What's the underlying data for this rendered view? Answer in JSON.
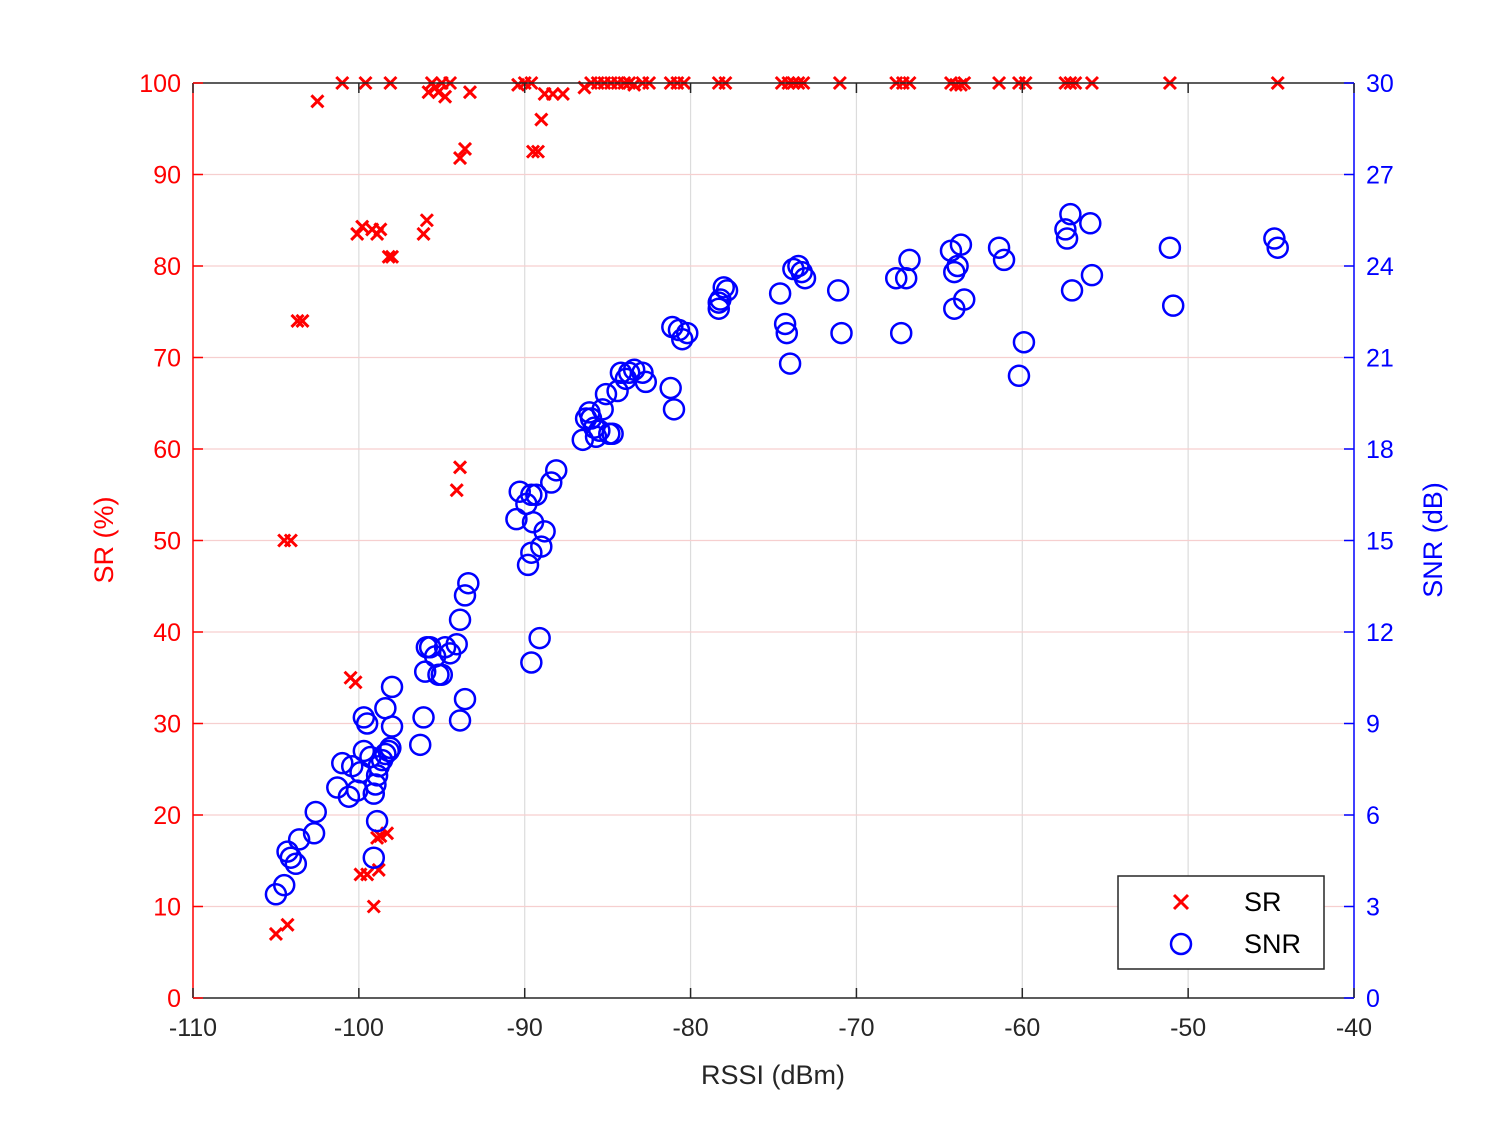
{
  "chart_data": {
    "type": "scatter",
    "xlabel": "RSSI (dBm)",
    "ylabel_left": "SR (%)",
    "ylabel_right": "SNR (dB)",
    "xlim": [
      -110,
      -40
    ],
    "ylim_left": [
      0,
      100
    ],
    "ylim_right": [
      0,
      30
    ],
    "xticks": [
      -110,
      -100,
      -90,
      -80,
      -70,
      -60,
      -50,
      -40
    ],
    "yticks_left": [
      0,
      10,
      20,
      30,
      40,
      50,
      60,
      70,
      80,
      90,
      100
    ],
    "yticks_right": [
      0,
      3,
      6,
      9,
      12,
      15,
      18,
      21,
      24,
      27,
      30
    ],
    "grid": true,
    "legend_position": "bottom-right",
    "colors": {
      "SR": "#ff0000",
      "SNR": "#0000ff",
      "axis": "#262626",
      "grid": "#dcdcdc",
      "grid_right": "#f6cfcf"
    },
    "series": [
      {
        "name": "SR",
        "axis": "left",
        "marker": "x",
        "points": [
          [
            -105,
            7
          ],
          [
            -104.3,
            8
          ],
          [
            -104.5,
            50
          ],
          [
            -104.1,
            50
          ],
          [
            -103.7,
            74
          ],
          [
            -103.4,
            74
          ],
          [
            -102.5,
            98
          ],
          [
            -101,
            100
          ],
          [
            -100.5,
            35
          ],
          [
            -100.2,
            34.5
          ],
          [
            -100.1,
            83.5
          ],
          [
            -99.8,
            84.3
          ],
          [
            -99.6,
            100
          ],
          [
            -99.9,
            13.5
          ],
          [
            -99.5,
            13.5
          ],
          [
            -99.2,
            84
          ],
          [
            -98.9,
            83.5
          ],
          [
            -98.7,
            84
          ],
          [
            -99.1,
            10
          ],
          [
            -98.9,
            17.5
          ],
          [
            -98.7,
            17.7
          ],
          [
            -98.8,
            14
          ],
          [
            -98.3,
            18
          ],
          [
            -98.2,
            81
          ],
          [
            -98.0,
            81
          ],
          [
            -98.1,
            100
          ],
          [
            -96.1,
            83.5
          ],
          [
            -95.9,
            85
          ],
          [
            -95.8,
            99
          ],
          [
            -95.6,
            100
          ],
          [
            -95.4,
            99.5
          ],
          [
            -95.2,
            99
          ],
          [
            -95.0,
            100
          ],
          [
            -94.8,
            98.5
          ],
          [
            -94.5,
            100
          ],
          [
            -94.1,
            55.5
          ],
          [
            -93.9,
            58
          ],
          [
            -93.9,
            91.8
          ],
          [
            -93.6,
            92.8
          ],
          [
            -93.3,
            99
          ],
          [
            -90.4,
            99.8
          ],
          [
            -90,
            100
          ],
          [
            -89.6,
            100
          ],
          [
            -89.5,
            92.5
          ],
          [
            -89.2,
            92.5
          ],
          [
            -89.0,
            96
          ],
          [
            -88.8,
            98.8
          ],
          [
            -88.3,
            98.8
          ],
          [
            -87.7,
            98.8
          ],
          [
            -86.4,
            99.5
          ],
          [
            -86.0,
            100
          ],
          [
            -85.6,
            100
          ],
          [
            -85.2,
            100
          ],
          [
            -84.8,
            100
          ],
          [
            -84.4,
            100
          ],
          [
            -84.0,
            100
          ],
          [
            -83.7,
            100
          ],
          [
            -83.4,
            99.8
          ],
          [
            -82.9,
            100
          ],
          [
            -82.5,
            100
          ],
          [
            -81.2,
            100
          ],
          [
            -80.8,
            100
          ],
          [
            -80.4,
            100
          ],
          [
            -78.3,
            100
          ],
          [
            -77.9,
            100
          ],
          [
            -74.5,
            100
          ],
          [
            -74.1,
            100
          ],
          [
            -73.8,
            100
          ],
          [
            -73.5,
            100
          ],
          [
            -73.2,
            100
          ],
          [
            -71.0,
            100
          ],
          [
            -67.6,
            100
          ],
          [
            -67.2,
            100
          ],
          [
            -66.8,
            100
          ],
          [
            -64.3,
            100
          ],
          [
            -64.0,
            99.8
          ],
          [
            -63.7,
            99.8
          ],
          [
            -63.5,
            100
          ],
          [
            -61.4,
            100
          ],
          [
            -60.2,
            100
          ],
          [
            -59.8,
            100
          ],
          [
            -57.4,
            100
          ],
          [
            -57.1,
            100
          ],
          [
            -56.8,
            100
          ],
          [
            -55.8,
            100
          ],
          [
            -51.1,
            100
          ],
          [
            -44.6,
            100
          ]
        ]
      },
      {
        "name": "SNR",
        "axis": "right",
        "marker": "o",
        "points": [
          [
            -105,
            3.4
          ],
          [
            -104.5,
            3.7
          ],
          [
            -104.3,
            4.8
          ],
          [
            -104.1,
            4.6
          ],
          [
            -103.8,
            4.4
          ],
          [
            -103.6,
            5.2
          ],
          [
            -102.7,
            5.4
          ],
          [
            -102.6,
            6.1
          ],
          [
            -101.3,
            6.9
          ],
          [
            -101.0,
            7.7
          ],
          [
            -100.6,
            6.6
          ],
          [
            -100.4,
            7.6
          ],
          [
            -100.1,
            6.8
          ],
          [
            -99.9,
            7.4
          ],
          [
            -99.7,
            8.1
          ],
          [
            -99.7,
            9.2
          ],
          [
            -99.5,
            9.0
          ],
          [
            -99.3,
            7.9
          ],
          [
            -99.1,
            6.7
          ],
          [
            -99.0,
            7.0
          ],
          [
            -98.9,
            7.3
          ],
          [
            -98.8,
            7.6
          ],
          [
            -98.6,
            7.8
          ],
          [
            -98.4,
            8.0
          ],
          [
            -99.1,
            4.6
          ],
          [
            -98.9,
            5.8
          ],
          [
            -98.4,
            9.5
          ],
          [
            -98.2,
            8.1
          ],
          [
            -98.1,
            8.2
          ],
          [
            -98.0,
            8.9
          ],
          [
            -98.0,
            10.2
          ],
          [
            -96.3,
            8.3
          ],
          [
            -96.1,
            9.2
          ],
          [
            -96.0,
            10.7
          ],
          [
            -95.9,
            11.5
          ],
          [
            -95.7,
            11.5
          ],
          [
            -95.4,
            11.2
          ],
          [
            -95.2,
            10.6
          ],
          [
            -95.0,
            10.6
          ],
          [
            -94.8,
            11.5
          ],
          [
            -94.5,
            11.3
          ],
          [
            -94.1,
            11.6
          ],
          [
            -93.9,
            9.1
          ],
          [
            -93.9,
            12.4
          ],
          [
            -93.6,
            9.8
          ],
          [
            -93.6,
            13.2
          ],
          [
            -93.4,
            13.6
          ],
          [
            -90.5,
            15.7
          ],
          [
            -90.3,
            16.6
          ],
          [
            -89.9,
            16.2
          ],
          [
            -89.8,
            14.2
          ],
          [
            -89.6,
            16.5
          ],
          [
            -89.6,
            14.6
          ],
          [
            -89.5,
            15.6
          ],
          [
            -89.3,
            16.5
          ],
          [
            -89.0,
            14.8
          ],
          [
            -88.8,
            15.3
          ],
          [
            -88.4,
            16.9
          ],
          [
            -88.1,
            17.3
          ],
          [
            -89.6,
            11.0
          ],
          [
            -89.1,
            11.8
          ],
          [
            -86.5,
            18.3
          ],
          [
            -86.3,
            19.0
          ],
          [
            -86.1,
            19.2
          ],
          [
            -86.0,
            19.0
          ],
          [
            -85.8,
            18.7
          ],
          [
            -85.7,
            18.4
          ],
          [
            -85.5,
            18.6
          ],
          [
            -85.3,
            19.3
          ],
          [
            -85.1,
            19.8
          ],
          [
            -84.9,
            18.5
          ],
          [
            -84.7,
            18.5
          ],
          [
            -84.4,
            19.9
          ],
          [
            -84.2,
            20.5
          ],
          [
            -83.9,
            20.3
          ],
          [
            -83.7,
            20.5
          ],
          [
            -83.4,
            20.6
          ],
          [
            -82.9,
            20.5
          ],
          [
            -82.7,
            20.2
          ],
          [
            -81.2,
            20.0
          ],
          [
            -81.0,
            19.3
          ],
          [
            -81.1,
            22.0
          ],
          [
            -80.7,
            21.9
          ],
          [
            -80.5,
            21.6
          ],
          [
            -80.2,
            21.8
          ],
          [
            -78.3,
            22.8
          ],
          [
            -78.3,
            22.6
          ],
          [
            -78.2,
            22.9
          ],
          [
            -78.0,
            23.3
          ],
          [
            -77.8,
            23.2
          ],
          [
            -74.6,
            23.1
          ],
          [
            -74.3,
            22.1
          ],
          [
            -74.2,
            21.8
          ],
          [
            -74.0,
            20.8
          ],
          [
            -73.8,
            23.9
          ],
          [
            -73.5,
            24.0
          ],
          [
            -73.3,
            23.8
          ],
          [
            -73.1,
            23.6
          ],
          [
            -71.1,
            23.2
          ],
          [
            -70.9,
            21.8
          ],
          [
            -67.6,
            23.6
          ],
          [
            -67.3,
            21.8
          ],
          [
            -67.0,
            23.6
          ],
          [
            -66.8,
            24.2
          ],
          [
            -64.3,
            24.5
          ],
          [
            -64.1,
            22.6
          ],
          [
            -64.1,
            23.8
          ],
          [
            -63.9,
            24.0
          ],
          [
            -63.7,
            24.7
          ],
          [
            -63.5,
            22.9
          ],
          [
            -61.4,
            24.6
          ],
          [
            -61.1,
            24.2
          ],
          [
            -60.2,
            20.4
          ],
          [
            -59.9,
            21.5
          ],
          [
            -57.4,
            25.2
          ],
          [
            -57.3,
            24.9
          ],
          [
            -57.1,
            25.7
          ],
          [
            -57.0,
            23.2
          ],
          [
            -55.9,
            25.4
          ],
          [
            -55.8,
            23.7
          ],
          [
            -51.1,
            24.6
          ],
          [
            -50.9,
            22.7
          ],
          [
            -44.8,
            24.9
          ],
          [
            -44.6,
            24.6
          ]
        ]
      }
    ]
  }
}
